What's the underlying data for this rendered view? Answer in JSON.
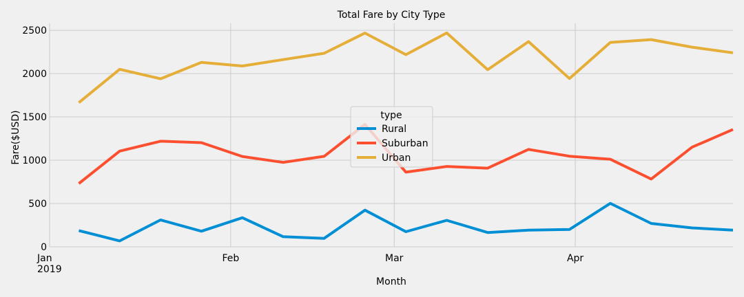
{
  "chart_data": {
    "type": "line",
    "title": "Total Fare by City Type",
    "xlabel": "Month",
    "ylabel": "Fare($USD)",
    "x": [
      "2019-01-06",
      "2019-01-13",
      "2019-01-20",
      "2019-01-27",
      "2019-02-03",
      "2019-02-10",
      "2019-02-17",
      "2019-02-24",
      "2019-03-03",
      "2019-03-10",
      "2019-03-17",
      "2019-03-24",
      "2019-03-31",
      "2019-04-07",
      "2019-04-14",
      "2019-04-21",
      "2019-04-28"
    ],
    "x_ticks": [
      {
        "date": "2019-01-01",
        "label": "Jan",
        "sublabel": "2019"
      },
      {
        "date": "2019-02-01",
        "label": "Feb",
        "sublabel": ""
      },
      {
        "date": "2019-03-01",
        "label": "Mar",
        "sublabel": ""
      },
      {
        "date": "2019-04-01",
        "label": "Apr",
        "sublabel": ""
      }
    ],
    "xlim": [
      "2019-01-01",
      "2019-04-28"
    ],
    "ylim": [
      0,
      2580
    ],
    "y_ticks": [
      0,
      500,
      1000,
      1500,
      2000,
      2500
    ],
    "grid": true,
    "legend": {
      "title": "type",
      "position": "center"
    },
    "series": [
      {
        "name": "Rural",
        "color": "#008fd5",
        "values": [
          187,
          68,
          310,
          180,
          336,
          117,
          98,
          423,
          175,
          306,
          165,
          192,
          200,
          502,
          270,
          218,
          193
        ]
      },
      {
        "name": "Suburban",
        "color": "#fc4f30",
        "values": [
          730,
          1105,
          1219,
          1203,
          1043,
          975,
          1045,
          1413,
          862,
          928,
          908,
          1125,
          1046,
          1011,
          783,
          1150,
          1355
        ]
      },
      {
        "name": "Urban",
        "color": "#e5ae38",
        "values": [
          1665,
          2050,
          1940,
          2130,
          2088,
          2162,
          2235,
          2468,
          2219,
          2470,
          2045,
          2370,
          1943,
          2360,
          2393,
          2305,
          2240
        ]
      }
    ]
  }
}
